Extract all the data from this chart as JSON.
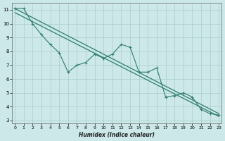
{
  "background_color": "#cce8e8",
  "grid_color": "#aacccc",
  "line_color": "#2e7d6e",
  "x_label": "Humidex (Indice chaleur)",
  "ylim": [
    2.8,
    11.5
  ],
  "xlim": [
    -0.3,
    23.3
  ],
  "yticks": [
    3,
    4,
    5,
    6,
    7,
    8,
    9,
    10,
    11
  ],
  "xticks": [
    0,
    1,
    2,
    3,
    4,
    5,
    6,
    7,
    8,
    9,
    10,
    11,
    12,
    13,
    14,
    15,
    16,
    17,
    18,
    19,
    20,
    21,
    22,
    23
  ],
  "data_x": [
    0,
    1,
    2,
    3,
    4,
    5,
    6,
    7,
    8,
    9,
    10,
    11,
    12,
    13,
    14,
    15,
    16,
    17,
    18,
    19,
    20,
    21,
    22,
    23
  ],
  "data_y": [
    11.1,
    11.1,
    10.0,
    9.2,
    8.5,
    7.9,
    6.5,
    7.0,
    7.2,
    7.8,
    7.5,
    7.8,
    8.5,
    8.3,
    6.5,
    6.5,
    6.8,
    4.7,
    4.8,
    5.0,
    4.7,
    3.8,
    3.5,
    3.4
  ],
  "line1_x": [
    0,
    23
  ],
  "line1_y": [
    11.1,
    3.5
  ],
  "line2_x": [
    0,
    23
  ],
  "line2_y": [
    10.8,
    3.3
  ]
}
